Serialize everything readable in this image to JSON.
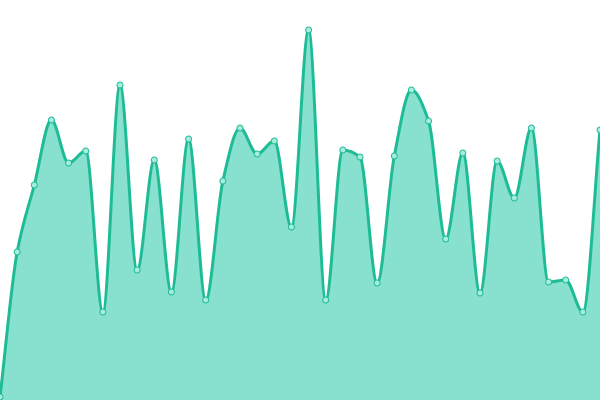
{
  "chart_data": {
    "type": "area",
    "title": "",
    "xlabel": "",
    "ylabel": "",
    "ylim": [
      0,
      400
    ],
    "grid": false,
    "legend": "none",
    "x": [
      0,
      1,
      2,
      3,
      4,
      5,
      6,
      7,
      8,
      9,
      10,
      11,
      12,
      13,
      14,
      15,
      16,
      17,
      18,
      19,
      20,
      21,
      22,
      23,
      24,
      25,
      26,
      27,
      28,
      29,
      30,
      31,
      32,
      33,
      34,
      35
    ],
    "values": [
      3,
      148,
      215,
      280,
      237,
      249,
      88,
      315,
      130,
      240,
      108,
      261,
      100,
      219,
      272,
      246,
      259,
      173,
      370,
      100,
      250,
      243,
      117,
      244,
      310,
      279,
      161,
      247,
      107,
      239,
      202,
      272,
      118,
      120,
      88,
      270
    ],
    "colors": {
      "line": "#1dbc95",
      "fill": "#88e0cf",
      "point_fill": "#a8ecdf",
      "point_stroke": "#1dbc95"
    }
  }
}
